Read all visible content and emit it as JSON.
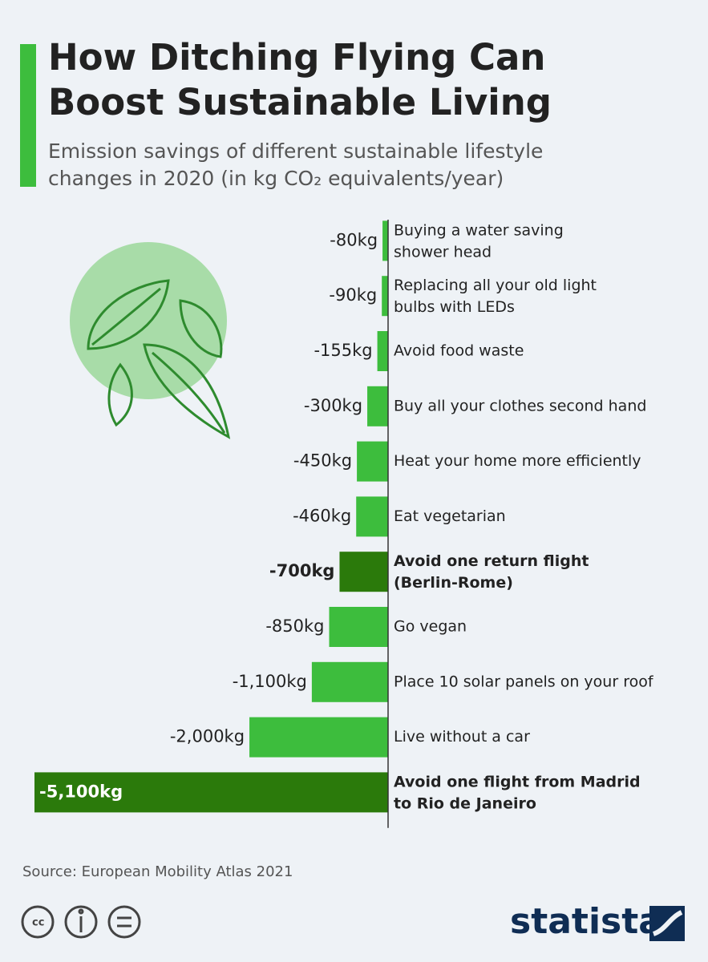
{
  "chart_data": {
    "type": "bar",
    "orientation": "horizontal",
    "title": "How Ditching Flying Can\nBoost Sustainable Living",
    "subtitle": "Emission savings of different sustainable lifestyle\nchanges in 2020 (in kg CO₂ equivalents/year)",
    "categories": [
      "Buying a water saving\nshower head",
      "Replacing all your old light\nbulbs with LEDs",
      "Avoid food waste",
      "Buy all your clothes second hand",
      "Heat your home more efficiently",
      "Eat vegetarian",
      "Avoid one return flight\n(Berlin-Rome)",
      "Go vegan",
      "Place 10 solar panels on your roof",
      "Live without a car",
      "Avoid one flight from Madrid\nto Rio de Janeiro"
    ],
    "values": [
      -80,
      -90,
      -155,
      -300,
      -450,
      -460,
      -700,
      -850,
      -1100,
      -2000,
      -5100
    ],
    "value_labels": [
      "-80kg",
      "-90kg",
      "-155kg",
      "-300kg",
      "-450kg",
      "-460kg",
      "-700kg",
      "-850kg",
      "-1,100kg",
      "-2,000kg",
      "-5,100kg"
    ],
    "colors": [
      "#3dbd3d",
      "#3dbd3d",
      "#3dbd3d",
      "#3dbd3d",
      "#3dbd3d",
      "#3dbd3d",
      "#2b7a0b",
      "#3dbd3d",
      "#3dbd3d",
      "#3dbd3d",
      "#2b7a0b"
    ],
    "highlight_color": "#2b7a0b",
    "xlim": [
      -5100,
      0
    ],
    "source": "Source: European Mobility Atlas 2021",
    "brand": "statista"
  }
}
